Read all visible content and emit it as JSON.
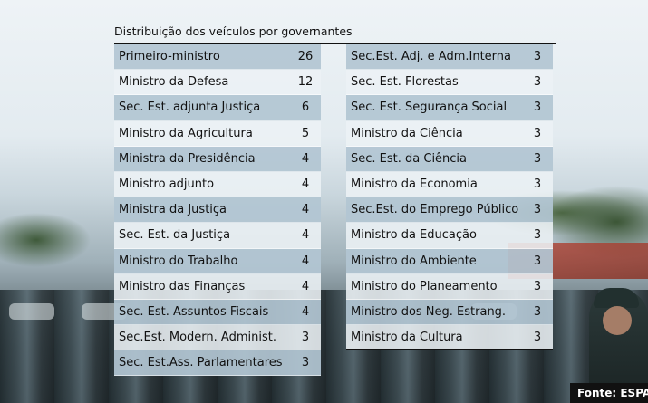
{
  "title": "Distribuição dos veículos por governantes",
  "left_column": [
    {
      "name": "Primeiro-ministro",
      "value": "26"
    },
    {
      "name": "Ministro da Defesa",
      "value": "12"
    },
    {
      "name": "Sec. Est. adjunta Justiça",
      "value": "6"
    },
    {
      "name": "Ministro da Agricultura",
      "value": "5"
    },
    {
      "name": "Ministra da Presidência",
      "value": "4"
    },
    {
      "name": "Ministro adjunto",
      "value": "4"
    },
    {
      "name": "Ministra da Justiça",
      "value": "4"
    },
    {
      "name": "Sec. Est. da Justiça",
      "value": "4"
    },
    {
      "name": "Ministro do Trabalho",
      "value": "4"
    },
    {
      "name": "Ministro das Finanças",
      "value": "4"
    },
    {
      "name": "Sec. Est. Assuntos Fiscais",
      "value": "4"
    },
    {
      "name": "Sec.Est. Modern. Administ.",
      "value": "3"
    },
    {
      "name": "Sec. Est.Ass. Parlamentares",
      "value": "3"
    }
  ],
  "right_column": [
    {
      "name": "Sec.Est. Adj. e Adm.Interna",
      "value": "3"
    },
    {
      "name": "Sec. Est. Florestas",
      "value": "3"
    },
    {
      "name": "Sec. Est. Segurança Social",
      "value": "3"
    },
    {
      "name": "Ministro da Ciência",
      "value": "3"
    },
    {
      "name": "Sec. Est. da Ciência",
      "value": "3"
    },
    {
      "name": "Ministro da Economia",
      "value": "3"
    },
    {
      "name": "Sec.Est. do Emprego Público",
      "value": "3"
    },
    {
      "name": "Ministro da Educação",
      "value": "3"
    },
    {
      "name": "Ministro do Ambiente",
      "value": "3"
    },
    {
      "name": "Ministro do Planeamento",
      "value": "3"
    },
    {
      "name": "Ministro dos Neg. Estrang.",
      "value": "3"
    },
    {
      "name": "Ministro da Cultura",
      "value": "3"
    }
  ],
  "source": "Fonte: ESPAÇO",
  "colors": {
    "row_odd": "#b2c5d2",
    "row_even": "#ecf1f5",
    "text": "#111111",
    "rule": "#111111"
  }
}
